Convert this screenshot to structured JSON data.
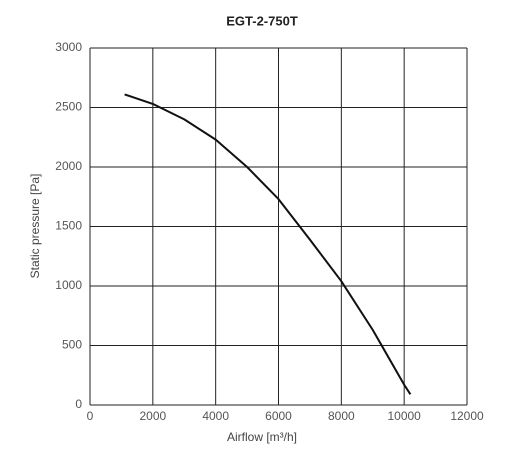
{
  "chart_data": {
    "type": "line",
    "title": "EGT-2-750T",
    "x_label": "Airflow [m³/h]",
    "y_label": "Static pressure [Pa]",
    "x": [
      1100,
      2000,
      3000,
      4000,
      5000,
      6000,
      7000,
      8000,
      9000,
      10000,
      10200
    ],
    "values": [
      2610,
      2530,
      2400,
      2230,
      2000,
      1730,
      1390,
      1040,
      630,
      170,
      90
    ],
    "color": "#111111",
    "xlim": [
      0,
      12000
    ],
    "xticks": [
      0,
      2000,
      4000,
      6000,
      8000,
      10000,
      12000
    ],
    "ylim": [
      0,
      3000
    ],
    "yticks": [
      0,
      500,
      1000,
      1500,
      2000,
      2500,
      3000
    ],
    "grid": true
  }
}
